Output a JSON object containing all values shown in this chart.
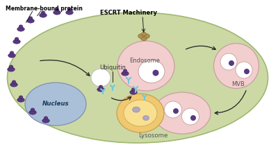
{
  "bg_color": "#ffffff",
  "cell_color": "#ccd9a5",
  "cell_edge": "#a0b870",
  "nucleus_color": "#aabfd8",
  "nucleus_edge": "#8090b0",
  "endo_color": "#f2cece",
  "endo_edge": "#c8a0a0",
  "white_color": "#ffffff",
  "mvb_color": "#f2cece",
  "mvb_edge": "#c8a0a0",
  "lys_orange_color": "#f0c870",
  "lys_orange_edge": "#c8a050",
  "lys_pink_color": "#f2cece",
  "lys_pink_edge": "#c8a0a0",
  "protein_color": "#5a3880",
  "protein_edge": "#3a2060",
  "ubiquitin_color": "#70c8e0",
  "escrt_color": "#b09050",
  "escrt_edge": "#806030",
  "arrow_color": "#222222",
  "label_membrane": "Membrane-bound protein",
  "label_escrt": "ESCRT Machinery",
  "label_ubiquitin": "Ubiquitin",
  "label_endosome": "Endosome",
  "label_mvb": "MVB",
  "label_lysosome": "Lysosome",
  "label_nucleus": "Nucleus",
  "figsize": [
    4.0,
    2.09
  ],
  "dpi": 100
}
